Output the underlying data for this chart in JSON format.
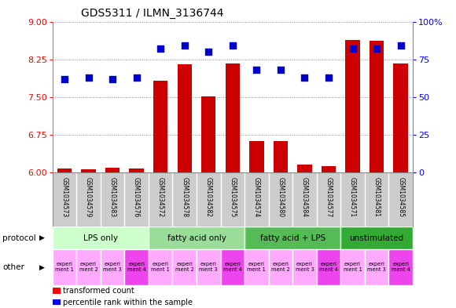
{
  "title": "GDS5311 / ILMN_3136744",
  "samples": [
    "GSM1034573",
    "GSM1034579",
    "GSM1034583",
    "GSM1034576",
    "GSM1034572",
    "GSM1034578",
    "GSM1034582",
    "GSM1034575",
    "GSM1034574",
    "GSM1034580",
    "GSM1034584",
    "GSM1034577",
    "GSM1034571",
    "GSM1034581",
    "GSM1034585"
  ],
  "transformed_count": [
    6.08,
    6.07,
    6.1,
    6.08,
    7.82,
    8.15,
    7.52,
    8.17,
    6.63,
    6.62,
    6.15,
    6.12,
    8.63,
    8.62,
    8.17
  ],
  "percentile_rank": [
    62,
    63,
    62,
    63,
    82,
    84,
    80,
    84,
    68,
    68,
    63,
    63,
    82,
    82,
    84
  ],
  "protocols": [
    {
      "label": "LPS only",
      "start": 0,
      "end": 4,
      "color": "#ccffcc"
    },
    {
      "label": "fatty acid only",
      "start": 4,
      "end": 8,
      "color": "#99dd99"
    },
    {
      "label": "fatty acid + LPS",
      "start": 8,
      "end": 12,
      "color": "#55bb55"
    },
    {
      "label": "unstimulated",
      "start": 12,
      "end": 15,
      "color": "#33aa33"
    }
  ],
  "other_labels": [
    "experi\nment 1",
    "experi\nment 2",
    "experi\nment 3",
    "experi\nment 4",
    "experi\nment 1",
    "experi\nment 2",
    "experi\nment 3",
    "experi\nment 4",
    "experi\nment 1",
    "experi\nment 2",
    "experi\nment 3",
    "experi\nment 4",
    "experi\nment 1",
    "experi\nment 3",
    "experi\nment 4"
  ],
  "other_colors": [
    "#ffaaff",
    "#ffaaff",
    "#ffaaff",
    "#ee44ee",
    "#ffaaff",
    "#ffaaff",
    "#ffaaff",
    "#ee44ee",
    "#ffaaff",
    "#ffaaff",
    "#ffaaff",
    "#ee44ee",
    "#ffaaff",
    "#ffaaff",
    "#ee44ee"
  ],
  "ylim_left": [
    6.0,
    9.0
  ],
  "ylim_right": [
    0,
    100
  ],
  "yticks_left": [
    6.0,
    6.75,
    7.5,
    8.25,
    9.0
  ],
  "yticks_right": [
    0,
    25,
    50,
    75,
    100
  ],
  "bar_color": "#cc0000",
  "dot_color": "#0000cc",
  "bg_color": "#ffffff",
  "plot_bg": "#ffffff",
  "bar_width": 0.6,
  "dot_size": 30,
  "label_bg": "#cccccc",
  "gsm_fontsize": 5.5,
  "protocol_fontsize": 7.5,
  "other_fontsize": 4.8,
  "legend_fontsize": 7,
  "title_fontsize": 10,
  "axis_fontsize": 8
}
